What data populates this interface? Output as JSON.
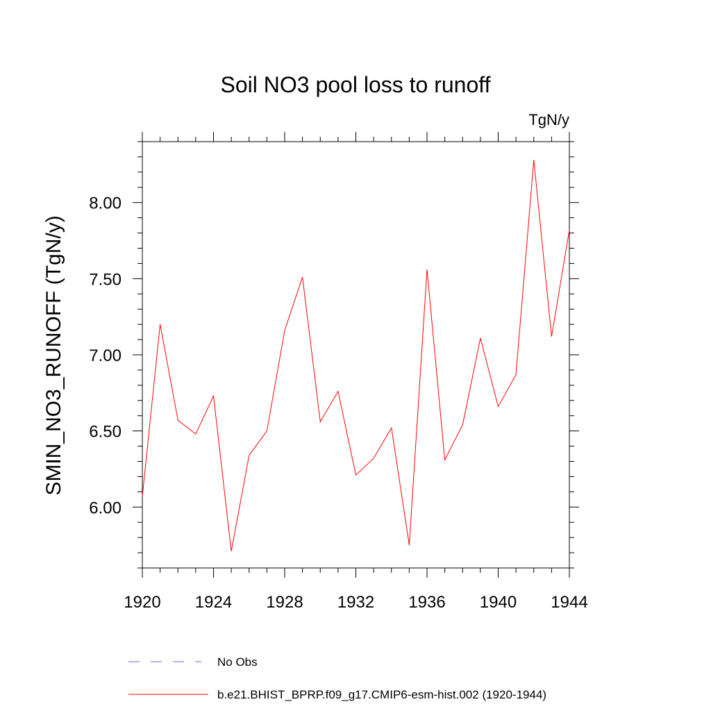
{
  "chart_data": {
    "type": "line",
    "title": "Soil NO3 pool loss to runoff",
    "units": "TgN/y",
    "ylabel": "SMIN_NO3_RUNOFF  (TgN/y)",
    "xlabel": "",
    "xlim": [
      1920,
      1944
    ],
    "ylim": [
      5.6,
      8.4
    ],
    "xticks": [
      1920,
      1924,
      1928,
      1932,
      1936,
      1940,
      1944
    ],
    "xtick_labels": [
      "1920",
      "1924",
      "1928",
      "1932",
      "1936",
      "1940",
      "1944"
    ],
    "yticks": [
      6.0,
      6.5,
      7.0,
      7.5,
      8.0
    ],
    "ytick_labels": [
      "6.00",
      "6.50",
      "7.00",
      "7.50",
      "8.00"
    ],
    "series": [
      {
        "name": "b.e21.BHIST_BPRP.f09_g17.CMIP6-esm-hist.002 (1920-1944)",
        "color": "#ff0000",
        "x": [
          1920,
          1921,
          1922,
          1923,
          1924,
          1925,
          1926,
          1927,
          1928,
          1929,
          1930,
          1931,
          1932,
          1933,
          1934,
          1935,
          1936,
          1937,
          1938,
          1939,
          1940,
          1941,
          1942,
          1943,
          1944
        ],
        "values": [
          6.07,
          7.2,
          6.57,
          6.48,
          6.73,
          5.71,
          6.34,
          6.5,
          7.16,
          7.51,
          6.56,
          6.76,
          6.21,
          6.32,
          6.52,
          5.75,
          7.56,
          6.31,
          6.54,
          7.11,
          6.66,
          6.87,
          8.28,
          7.12,
          7.82
        ]
      }
    ],
    "legend": [
      {
        "label": "No Obs",
        "color": "#6666cc",
        "style": "dashed"
      },
      {
        "label": "b.e21.BHIST_BPRP.f09_g17.CMIP6-esm-hist.002 (1920-1944)",
        "color": "#ff0000",
        "style": "solid"
      }
    ],
    "legend_position": "bottom",
    "grid": false
  }
}
